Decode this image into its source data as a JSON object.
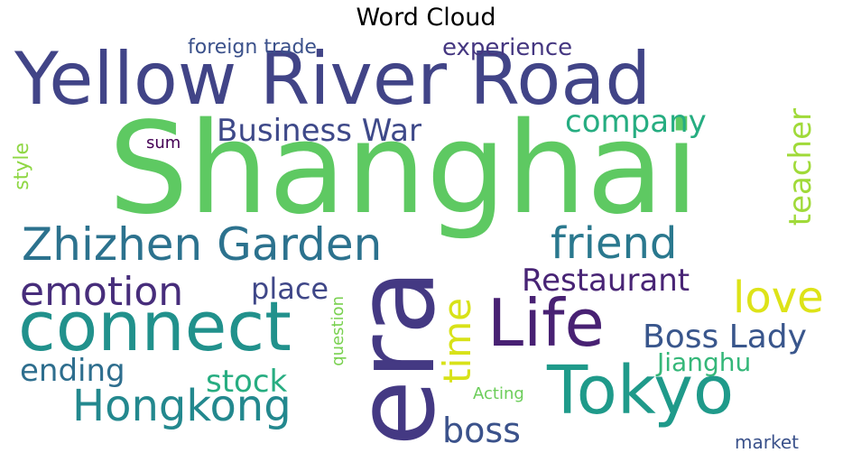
{
  "chart_data": {
    "type": "wordcloud",
    "title": "Word Cloud",
    "words": [
      {
        "text": "Shanghai",
        "weight": 100,
        "color": "#5ec962"
      },
      {
        "text": "Yellow River Road",
        "weight": 58,
        "color": "#414487"
      },
      {
        "text": "era",
        "weight": 88,
        "color": "#443983"
      },
      {
        "text": "connect",
        "weight": 56,
        "color": "#21918c"
      },
      {
        "text": "Tokyo",
        "weight": 54,
        "color": "#1f9a8a"
      },
      {
        "text": "Life",
        "weight": 52,
        "color": "#482173"
      },
      {
        "text": "Zhizhen Garden",
        "weight": 38,
        "color": "#2c728e"
      },
      {
        "text": "Hongkong",
        "weight": 36,
        "color": "#23888e"
      },
      {
        "text": "friend",
        "weight": 36,
        "color": "#2a788e"
      },
      {
        "text": "love",
        "weight": 36,
        "color": "#dde318"
      },
      {
        "text": "emotion",
        "weight": 32,
        "color": "#472d7b"
      },
      {
        "text": "time",
        "weight": 31,
        "color": "#d8e219"
      },
      {
        "text": "boss",
        "weight": 28,
        "color": "#3b528b"
      },
      {
        "text": "Boss Lady",
        "weight": 28,
        "color": "#39568c"
      },
      {
        "text": "company",
        "weight": 26,
        "color": "#26ad81"
      },
      {
        "text": "Restaurant",
        "weight": 26,
        "color": "#482475"
      },
      {
        "text": "Business War",
        "weight": 26,
        "color": "#3e4989"
      },
      {
        "text": "ending",
        "weight": 26,
        "color": "#2e6e8e"
      },
      {
        "text": "stock",
        "weight": 26,
        "color": "#27ad81"
      },
      {
        "text": "teacher",
        "weight": 26,
        "color": "#a0da39"
      },
      {
        "text": "place",
        "weight": 24,
        "color": "#3f4788"
      },
      {
        "text": "Jianghu",
        "weight": 22,
        "color": "#35b779"
      },
      {
        "text": "experience",
        "weight": 20,
        "color": "#453781"
      },
      {
        "text": "foreign trade",
        "weight": 16,
        "color": "#3b518b"
      },
      {
        "text": "style",
        "weight": 16,
        "color": "#8fd744"
      },
      {
        "text": "sum",
        "weight": 14,
        "color": "#440154"
      },
      {
        "text": "question",
        "weight": 14,
        "color": "#7ad151"
      },
      {
        "text": "Acting",
        "weight": 14,
        "color": "#6ccd5a"
      },
      {
        "text": "market",
        "weight": 16,
        "color": "#3b528b"
      }
    ]
  }
}
